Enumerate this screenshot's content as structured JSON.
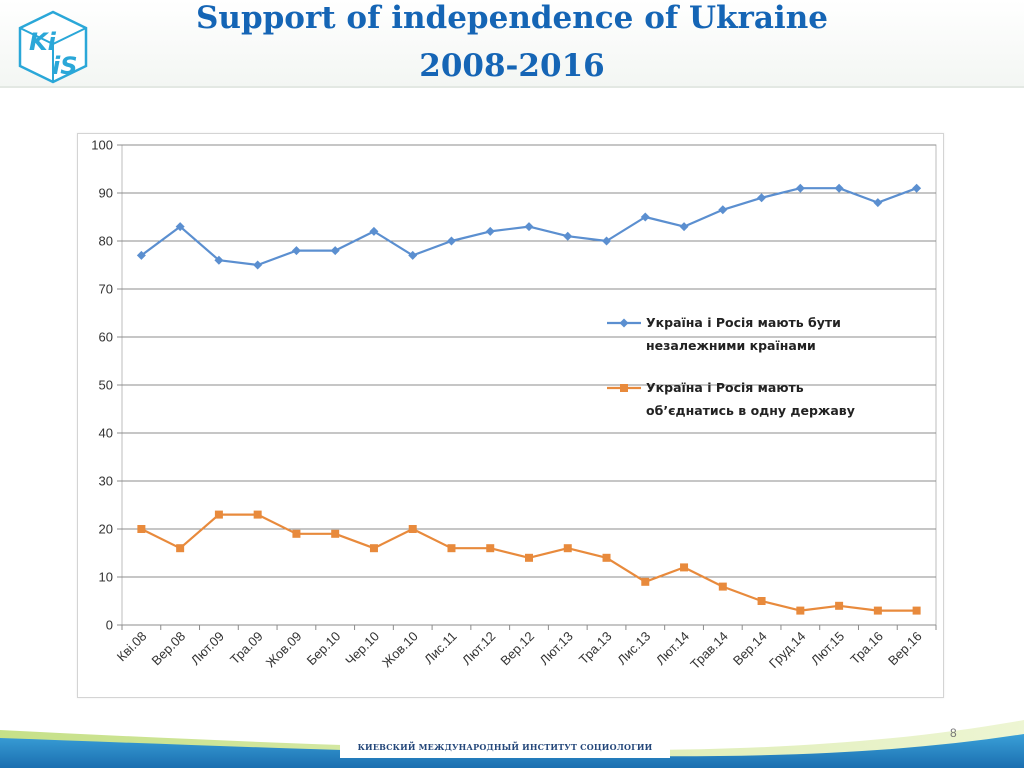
{
  "header": {
    "logo_text": "KiiS",
    "title_line1": "Support of independence of Ukraine",
    "title_line2": "2008-2016"
  },
  "footer": {
    "institute": "КИЕВСКИЙ МЕЖДУНАРОДНЫЙ ИНСТИТУТ СОЦИОЛОГИИ",
    "page_number": "8"
  },
  "colors": {
    "title": "#1565b5",
    "series_blue": "#5b8fd0",
    "series_orange": "#e88a3c",
    "grid": "#8c8c8c"
  },
  "chart_data": {
    "type": "line",
    "title": "",
    "xlabel": "",
    "ylabel": "",
    "ylim": [
      0,
      100
    ],
    "yticks": [
      0,
      10,
      20,
      30,
      40,
      50,
      60,
      70,
      80,
      90,
      100
    ],
    "grid": true,
    "legend_position": "right-middle",
    "categories": [
      "Кві.08",
      "Вер.08",
      "Лют.09",
      "Тра.09",
      "Жов.09",
      "Бер.10",
      "Чер.10",
      "Жов.10",
      "Лис.11",
      "Лют.12",
      "Вер.12",
      "Лют.13",
      "Тра.13",
      "Лис.13",
      "Лют.14",
      "Трав.14",
      "Вер.14",
      "Груд.14",
      "Лют.15",
      "Тра.16",
      "Вер.16"
    ],
    "series": [
      {
        "name": "Україна  і Росія  мають  бути незалежними країнами",
        "legend_lines": [
          "Україна  і Росія  мають  бути",
          "незалежними країнами"
        ],
        "color": "#5b8fd0",
        "marker": "diamond",
        "values": [
          77,
          83,
          76,
          75,
          78,
          78,
          82,
          77,
          80,
          82,
          83,
          81,
          80,
          85,
          83,
          86.5,
          89,
          91,
          91,
          88,
          91
        ]
      },
      {
        "name": "Україна  і Росія  мають об’єднатись  в одну державу",
        "legend_lines": [
          "Україна  і Росія  мають",
          "об’єднатись  в одну державу"
        ],
        "color": "#e88a3c",
        "marker": "square",
        "values": [
          20,
          16,
          23,
          23,
          19,
          19,
          16,
          20,
          16,
          16,
          14,
          16,
          14,
          9,
          12,
          8,
          5,
          3,
          4,
          3,
          3
        ]
      }
    ]
  }
}
